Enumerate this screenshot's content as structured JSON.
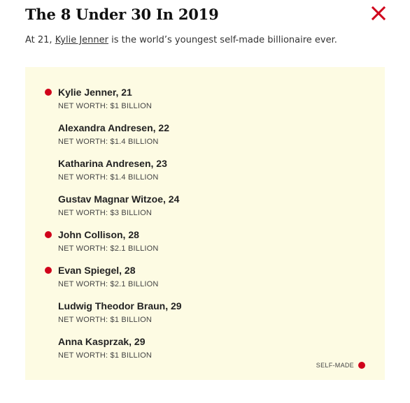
{
  "header": {
    "title": "The 8 Under 30 In 2019",
    "close_icon": "close-x-icon",
    "accent_color": "#d0021b"
  },
  "subtitle": {
    "prefix": "At 21, ",
    "link_text": "Kylie Jenner",
    "suffix": " is the world’s youngest self-made billionaire ever."
  },
  "panel": {
    "background": "#fdfbe3",
    "entries": [
      {
        "name": "Kylie Jenner, 21",
        "net_worth": "NET WORTH: $1 BILLION",
        "self_made": true
      },
      {
        "name": "Alexandra Andresen, 22",
        "net_worth": "NET WORTH: $1.4 BILLION",
        "self_made": false
      },
      {
        "name": "Katharina Andresen, 23",
        "net_worth": "NET WORTH: $1.4 BILLION",
        "self_made": false
      },
      {
        "name": "Gustav Magnar Witzoe, 24",
        "net_worth": "NET WORTH: $3 BILLION",
        "self_made": false
      },
      {
        "name": "John Collison, 28",
        "net_worth": "NET WORTH: $2.1 BILLION",
        "self_made": true
      },
      {
        "name": "Evan Spiegel, 28",
        "net_worth": "NET WORTH: $2.1 BILLION",
        "self_made": true
      },
      {
        "name": "Ludwig Theodor Braun, 29",
        "net_worth": "NET WORTH: $1 BILLION",
        "self_made": false
      },
      {
        "name": "Anna Kasprzak, 29",
        "net_worth": "NET WORTH: $1 BILLION",
        "self_made": false
      }
    ],
    "legend_label": "SELF-MADE"
  }
}
